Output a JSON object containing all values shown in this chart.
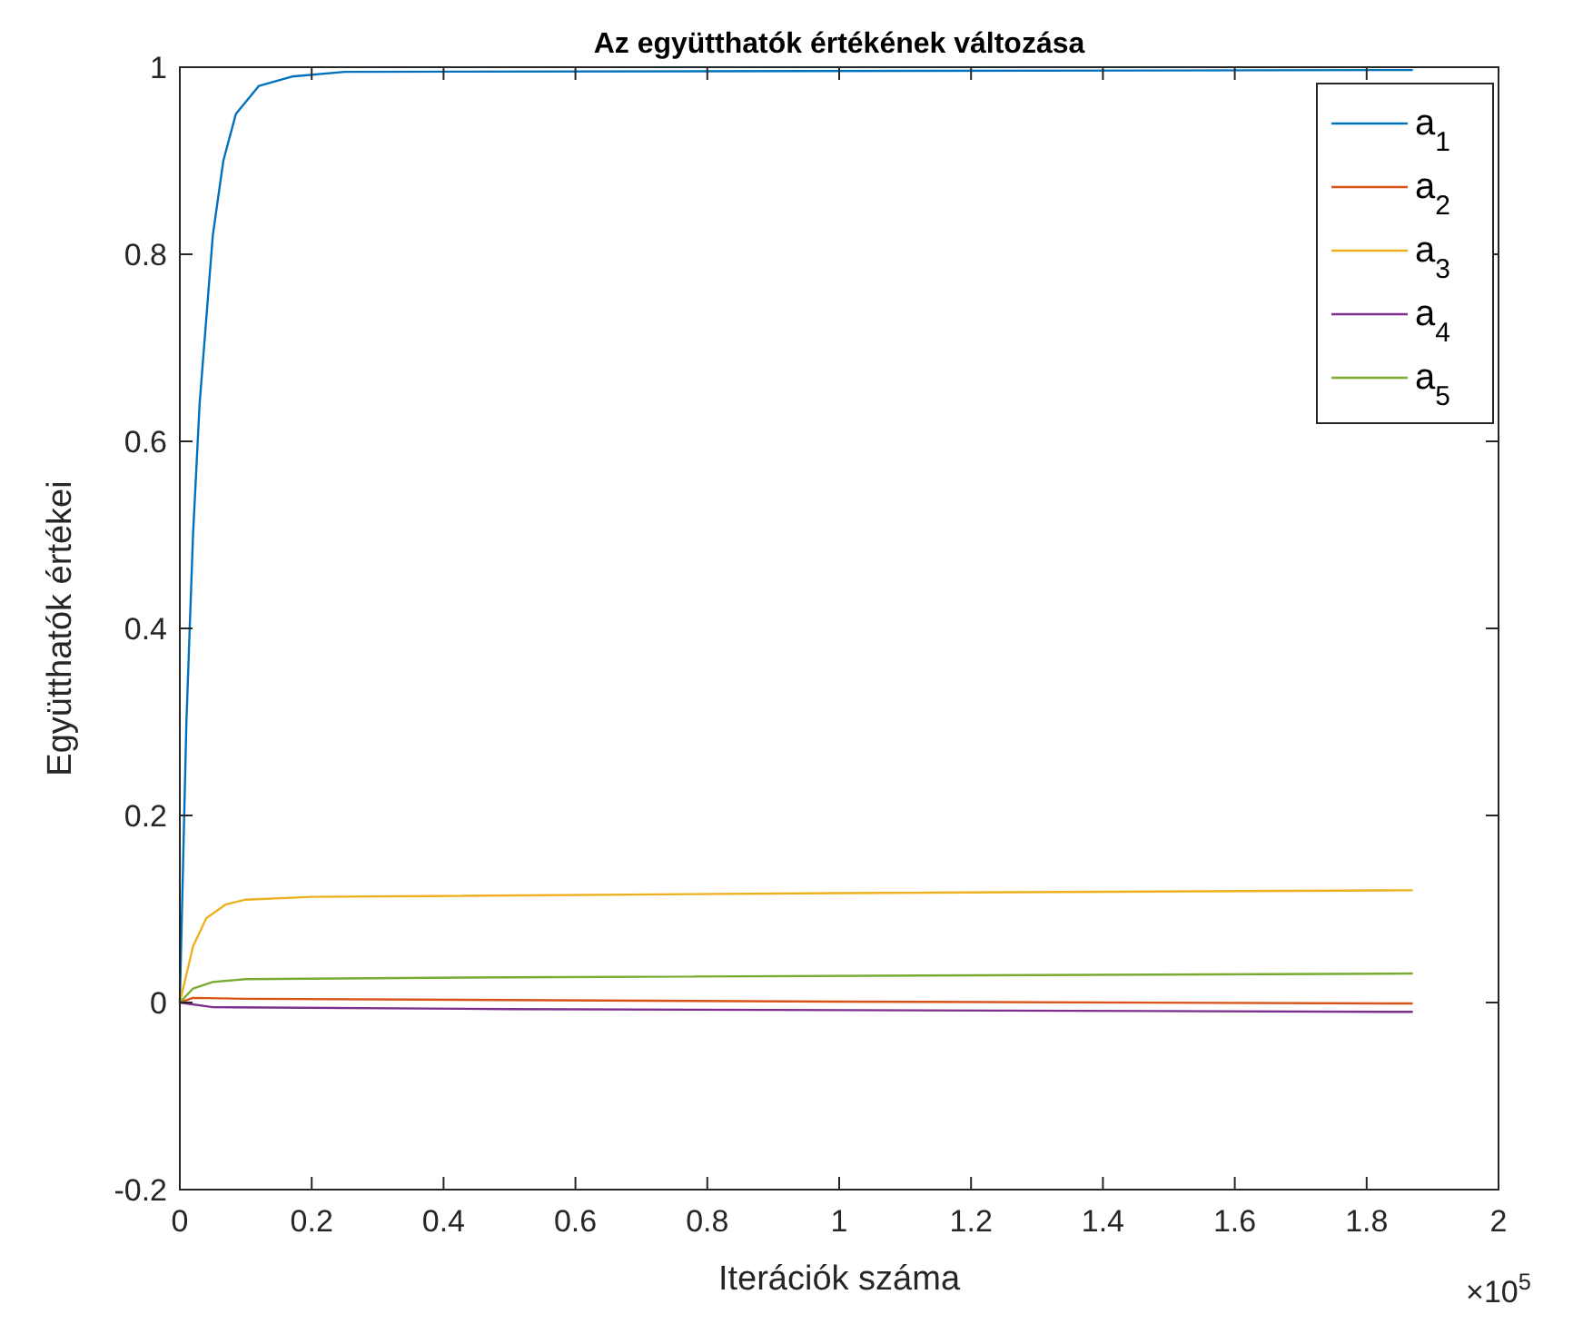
{
  "chart_data": {
    "type": "line",
    "title": "Az együtthatók értékének változása",
    "xlabel": "Iterációk száma",
    "ylabel": "Együtthatók értékei",
    "annotations": [
      "×10$^{5}$"
    ],
    "xlim": [
      0,
      2
    ],
    "xticks": [
      0,
      0.2,
      0.4,
      0.6,
      0.8,
      1,
      1.2,
      1.4,
      1.6,
      1.8,
      2
    ],
    "ylim": [
      -0.2,
      1
    ],
    "yticks": [
      -0.2,
      0,
      0.2,
      0.4,
      0.6,
      0.8,
      1
    ],
    "grid": false,
    "legend": "top right",
    "line_style": "solid",
    "marker": "none",
    "series": [
      {
        "name": "a$_{1}$",
        "color": "#0072bd",
        "x": [
          0,
          0.005,
          0.01,
          0.02,
          0.03,
          0.05,
          0.066,
          0.085,
          0.12,
          0.17,
          0.25,
          1.87
        ],
        "values": [
          0,
          0.15,
          0.3,
          0.5,
          0.64,
          0.82,
          0.9,
          0.95,
          0.98,
          0.99,
          0.995,
          0.997
        ]
      },
      {
        "name": "a$_{2}$",
        "color": "#d95319",
        "x": [
          0,
          0.02,
          0.1,
          1,
          1.87
        ],
        "values": [
          0,
          0.005,
          0.004,
          0.001,
          -0.001
        ]
      },
      {
        "name": "a$_{3}$",
        "color": "#edb120",
        "x": [
          0,
          0.02,
          0.04,
          0.07,
          0.1,
          0.2,
          1,
          1.87
        ],
        "values": [
          0,
          0.06,
          0.09,
          0.105,
          0.11,
          0.113,
          0.117,
          0.12
        ]
      },
      {
        "name": "a$_{4}$",
        "color": "#7e2f8e",
        "x": [
          0,
          0.05,
          0.5,
          1.87
        ],
        "values": [
          0,
          -0.005,
          -0.007,
          -0.01
        ]
      },
      {
        "name": "a$_{5}$",
        "color": "#77ac30",
        "x": [
          0,
          0.02,
          0.05,
          0.1,
          0.5,
          1.87
        ],
        "values": [
          0,
          0.015,
          0.022,
          0.025,
          0.027,
          0.031
        ]
      }
    ]
  }
}
